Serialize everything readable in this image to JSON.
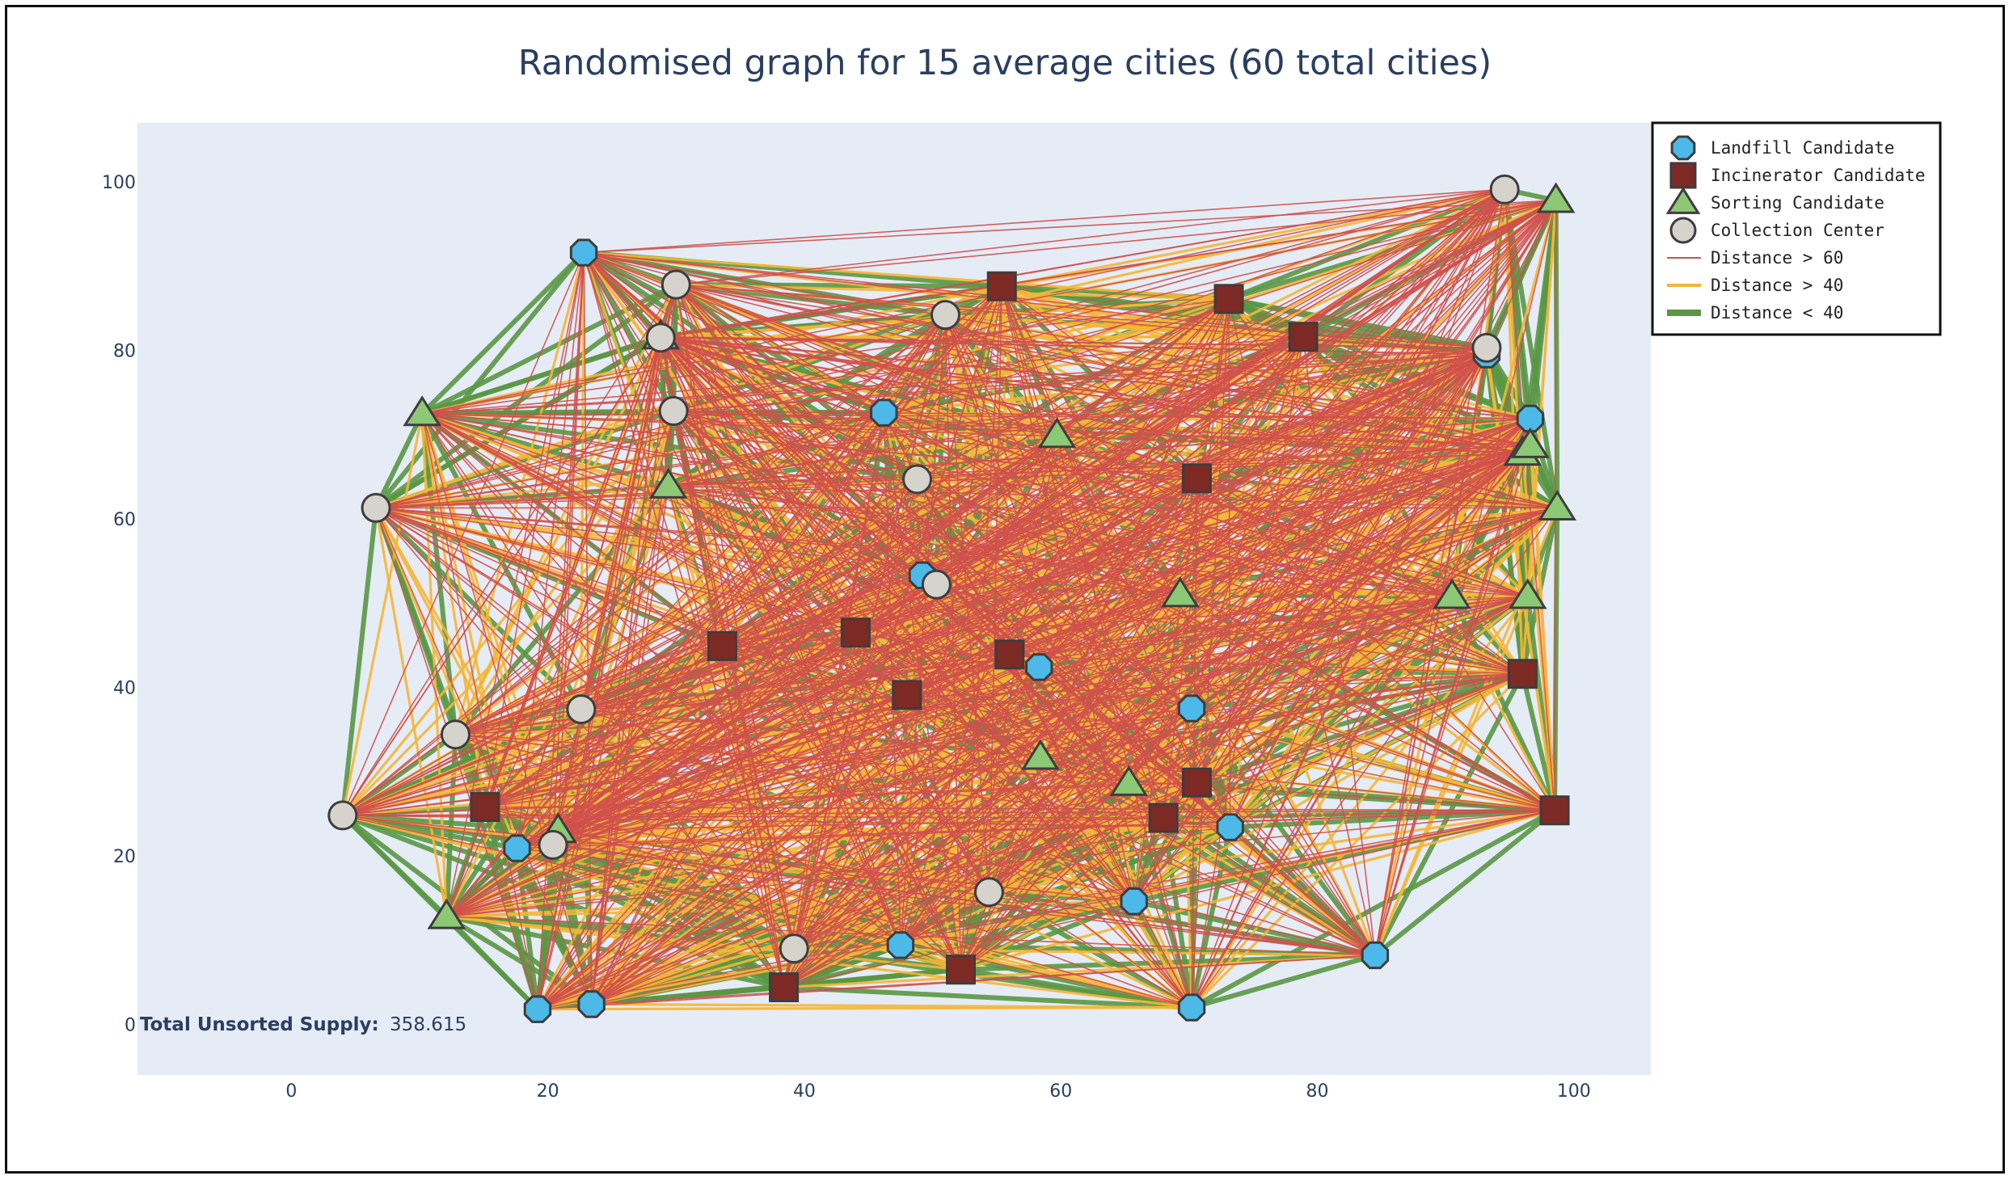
{
  "chart_data": {
    "type": "scatter",
    "title": "Randomised graph for 15 average cities (60 total cities)",
    "xlim": [
      -12,
      106
    ],
    "ylim": [
      -6,
      107
    ],
    "xticks": [
      0,
      20,
      40,
      60,
      80,
      100
    ],
    "yticks": [
      0,
      20,
      40,
      60,
      80,
      100
    ],
    "grid": false,
    "legend_placement": "top-right outside",
    "annotation": {
      "label": "Total Unsorted Supply:",
      "value": "358.615"
    },
    "colors": {
      "plot_bg": "#e5ecf6",
      "landfill": "#4cb9e8",
      "incinerator": "#7e2a24",
      "sorting": "#8dc875",
      "collection": "#d6d3cc",
      "marker_line": "#3d3d3d",
      "edge_far": "#d0504c",
      "edge_mid": "#f5b636",
      "edge_near": "#5a9745"
    },
    "series": [
      {
        "name": "Landfill Candidate",
        "symbol": "octagon",
        "points": [
          [
            22.8,
            91.6
          ],
          [
            46.2,
            72.6
          ],
          [
            49.2,
            53.3
          ],
          [
            58.3,
            42.4
          ],
          [
            70.2,
            37.5
          ],
          [
            73.2,
            23.4
          ],
          [
            65.7,
            14.6
          ],
          [
            84.5,
            8.2
          ],
          [
            70.2,
            2.0
          ],
          [
            47.5,
            9.4
          ],
          [
            23.4,
            2.4
          ],
          [
            19.2,
            1.8
          ],
          [
            17.6,
            20.9
          ],
          [
            96.6,
            71.9
          ],
          [
            93.2,
            79.5
          ]
        ]
      },
      {
        "name": "Incinerator Candidate",
        "symbol": "square",
        "points": [
          [
            55.4,
            87.6
          ],
          [
            73.1,
            86.1
          ],
          [
            78.9,
            81.6
          ],
          [
            70.6,
            64.8
          ],
          [
            56.0,
            43.9
          ],
          [
            44.0,
            46.5
          ],
          [
            48.0,
            39.1
          ],
          [
            33.6,
            44.9
          ],
          [
            15.1,
            25.8
          ],
          [
            38.4,
            4.4
          ],
          [
            52.2,
            6.5
          ],
          [
            68.0,
            24.5
          ],
          [
            70.6,
            28.7
          ],
          [
            96.0,
            41.6
          ],
          [
            98.5,
            25.4
          ]
        ]
      },
      {
        "name": "Sorting Candidate",
        "symbol": "triangle-up",
        "points": [
          [
            10.2,
            72.5
          ],
          [
            29.4,
            63.9
          ],
          [
            28.8,
            81.6
          ],
          [
            59.7,
            69.9
          ],
          [
            69.3,
            51.0
          ],
          [
            58.4,
            31.7
          ],
          [
            65.3,
            28.6
          ],
          [
            20.8,
            23.0
          ],
          [
            12.1,
            12.8
          ],
          [
            90.5,
            50.8
          ],
          [
            96.4,
            50.8
          ],
          [
            98.7,
            61.3
          ],
          [
            96.0,
            67.8
          ],
          [
            96.6,
            68.7
          ],
          [
            98.6,
            97.8
          ]
        ]
      },
      {
        "name": "Collection Center",
        "symbol": "circle",
        "points": [
          [
            94.6,
            99.1
          ],
          [
            30.0,
            87.8
          ],
          [
            51.0,
            84.2
          ],
          [
            28.8,
            81.5
          ],
          [
            29.8,
            72.8
          ],
          [
            48.8,
            64.7
          ],
          [
            6.6,
            61.3
          ],
          [
            50.3,
            52.2
          ],
          [
            22.6,
            37.4
          ],
          [
            12.8,
            34.4
          ],
          [
            20.4,
            21.3
          ],
          [
            4.0,
            24.8
          ],
          [
            54.4,
            15.7
          ],
          [
            39.2,
            9.0
          ],
          [
            93.2,
            80.3
          ]
        ]
      },
      {
        "name": "Distance > 60",
        "kind": "line",
        "threshold": 60
      },
      {
        "name": "Distance > 40",
        "kind": "line",
        "threshold": 40
      },
      {
        "name": "Distance < 40",
        "kind": "line",
        "threshold": 40
      }
    ]
  }
}
